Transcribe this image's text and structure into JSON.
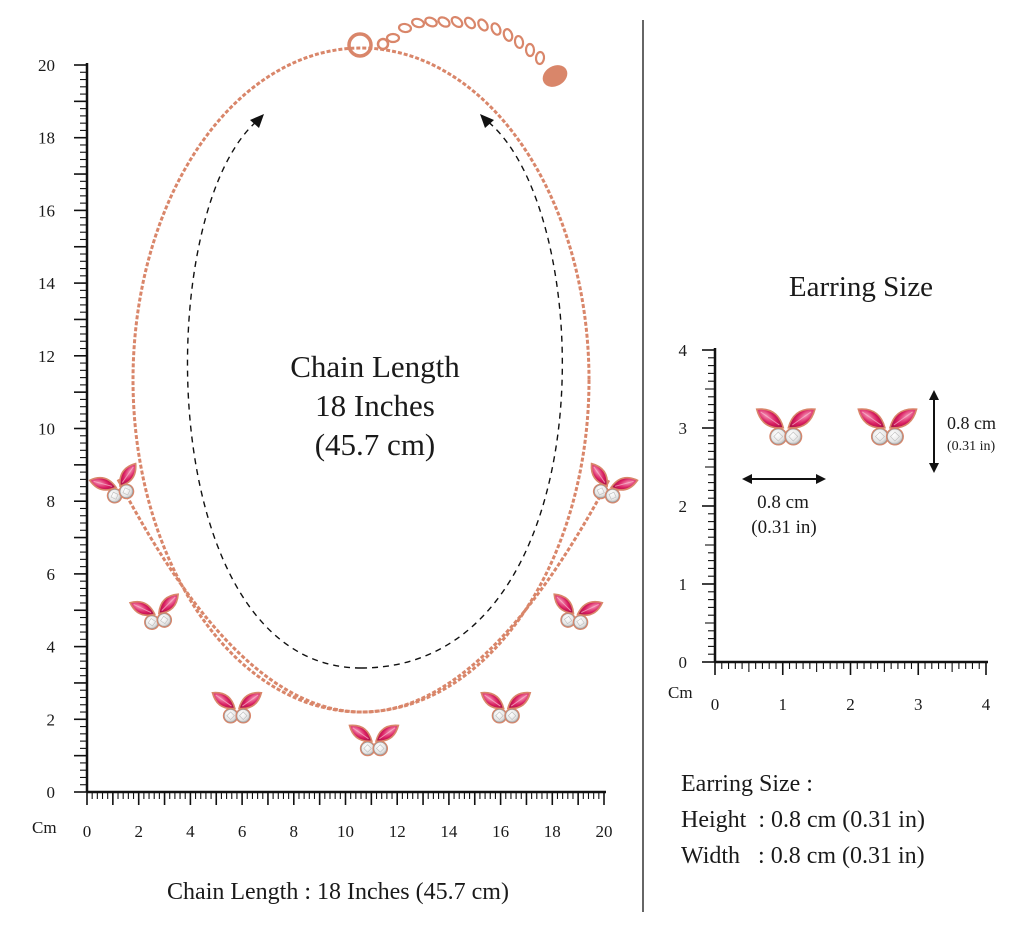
{
  "colors": {
    "chain": "#d9866a",
    "ruby": "#d81b60",
    "ruby_light": "#f06292",
    "diamond": "#f2f2f2",
    "ink": "#1a1a1a"
  },
  "necklace": {
    "center_label": [
      "Chain Length",
      "18 Inches",
      "(45.7 cm)"
    ],
    "caption": "Chain Length : 18 Inches (45.7 cm)",
    "unit_label": "Cm",
    "ruler": {
      "x_ticks": [
        "0",
        "2",
        "4",
        "6",
        "8",
        "10",
        "12",
        "14",
        "16",
        "18",
        "20"
      ],
      "y_ticks": [
        "0",
        "2",
        "4",
        "6",
        "8",
        "10",
        "12",
        "14",
        "16",
        "18",
        "20"
      ],
      "range": [
        0,
        20
      ]
    },
    "pendants": [
      {
        "x": 1.2,
        "y": 8.4,
        "rot": -20
      },
      {
        "x": 2.7,
        "y": 4.9,
        "rot": -10
      },
      {
        "x": 5.8,
        "y": 2.3,
        "rot": 0
      },
      {
        "x": 11.1,
        "y": 1.4,
        "rot": 0
      },
      {
        "x": 16.2,
        "y": 2.3,
        "rot": 0
      },
      {
        "x": 18.9,
        "y": 4.9,
        "rot": 10
      },
      {
        "x": 20.2,
        "y": 8.4,
        "rot": 20
      }
    ]
  },
  "earring": {
    "title": "Earring Size",
    "unit_label": "Cm",
    "ruler": {
      "x_ticks": [
        "0",
        "1",
        "2",
        "3",
        "4"
      ],
      "y_ticks": [
        "0",
        "1",
        "2",
        "3",
        "4"
      ],
      "range": [
        0,
        4
      ]
    },
    "items": [
      {
        "x": 0.75,
        "y": 2.9
      },
      {
        "x": 2.25,
        "y": 2.9
      }
    ],
    "width_label": [
      "0.8 cm",
      "(0.31 in)"
    ],
    "height_label": [
      "0.8 cm",
      "(0.31 in)"
    ]
  },
  "summary": {
    "title": "Earring Size :",
    "height_row": "Height  : 0.8 cm (0.31 in)",
    "width_row": "Width   : 0.8 cm (0.31 in)"
  }
}
